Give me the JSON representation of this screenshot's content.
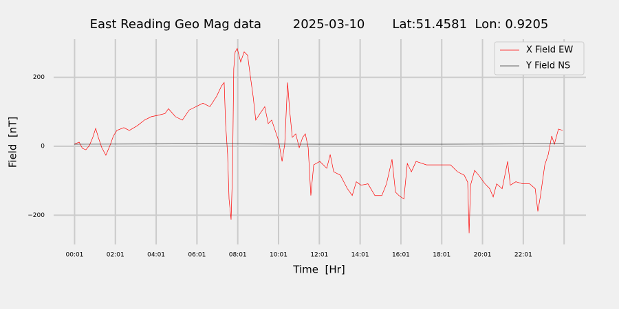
{
  "chart_data": {
    "type": "line",
    "title": "East Reading Geo Mag data        2025-03-10       Lat:51.4581  Lon: 0.9205",
    "x_label": "Time  [Hr]",
    "y_label": "Field  [nT]",
    "xlim": [
      -1.01,
      25.09
    ],
    "ylim": [
      -285,
      311
    ],
    "xticks": [
      {
        "value": 0.0167,
        "label": "00:01"
      },
      {
        "value": 2.0167,
        "label": "02:01"
      },
      {
        "value": 4.0167,
        "label": "04:01"
      },
      {
        "value": 6.0167,
        "label": "06:01"
      },
      {
        "value": 8.0167,
        "label": "08:01"
      },
      {
        "value": 10.0167,
        "label": "10:01"
      },
      {
        "value": 12.0167,
        "label": "12:01"
      },
      {
        "value": 14.0167,
        "label": "14:01"
      },
      {
        "value": 16.0167,
        "label": "16:01"
      },
      {
        "value": 18.0167,
        "label": "18:01"
      },
      {
        "value": 20.0167,
        "label": "20:01"
      },
      {
        "value": 22.0167,
        "label": "22:01"
      },
      {
        "value": 24.0167,
        "label": null
      }
    ],
    "yticks": [
      {
        "value": -200,
        "label": "−200"
      },
      0,
      200
    ],
    "grid": true,
    "legend": "upper right",
    "series": [
      {
        "name": "X Field EW",
        "color": "#ff0000",
        "x": [
          0.0,
          0.24,
          0.4,
          0.57,
          0.74,
          0.91,
          1.05,
          1.18,
          1.35,
          1.55,
          1.75,
          1.92,
          2.09,
          2.43,
          2.7,
          2.93,
          3.1,
          3.44,
          3.78,
          4.11,
          4.45,
          4.62,
          4.96,
          5.3,
          5.63,
          5.97,
          6.31,
          6.65,
          6.98,
          7.22,
          7.35,
          7.42,
          7.52,
          7.59,
          7.69,
          7.76,
          7.82,
          7.89,
          7.99,
          8.16,
          8.33,
          8.5,
          8.63,
          8.77,
          8.9,
          9.11,
          9.34,
          9.51,
          9.68,
          9.85,
          10.02,
          10.19,
          10.32,
          10.46,
          10.56,
          10.69,
          10.86,
          11.03,
          11.2,
          11.33,
          11.47,
          11.6,
          11.74,
          12.04,
          12.38,
          12.55,
          12.72,
          13.05,
          13.39,
          13.63,
          13.83,
          14.06,
          14.4,
          14.74,
          15.08,
          15.31,
          15.58,
          15.75,
          15.92,
          16.16,
          16.33,
          16.53,
          16.76,
          17.27,
          17.94,
          18.45,
          18.79,
          19.12,
          19.29,
          19.36,
          19.43,
          19.63,
          19.83,
          20.14,
          20.37,
          20.54,
          20.71,
          20.98,
          21.25,
          21.38,
          21.65,
          21.99,
          22.33,
          22.6,
          22.73,
          22.86,
          23.07,
          23.24,
          23.41,
          23.54,
          23.74,
          23.95
        ],
        "values": [
          6,
          12,
          -6,
          -10,
          2,
          26,
          52,
          26,
          -4,
          -26,
          2,
          30,
          46,
          54,
          46,
          54,
          60,
          76,
          86,
          90,
          95,
          109,
          86,
          76,
          105,
          115,
          125,
          115,
          145,
          175,
          185,
          66,
          -24,
          -153,
          -213,
          -74,
          225,
          274,
          284,
          245,
          274,
          264,
          205,
          145,
          76,
          95,
          115,
          66,
          76,
          46,
          16,
          -44,
          6,
          185,
          105,
          26,
          36,
          -4,
          26,
          36,
          -4,
          -143,
          -54,
          -44,
          -64,
          -24,
          -74,
          -84,
          -123,
          -143,
          -103,
          -113,
          -109,
          -143,
          -143,
          -109,
          -38,
          -133,
          -143,
          -153,
          -50,
          -74,
          -44,
          -54,
          -54,
          -54,
          -74,
          -84,
          -104,
          -252,
          -113,
          -70,
          -84,
          -109,
          -123,
          -147,
          -109,
          -123,
          -44,
          -113,
          -103,
          -109,
          -109,
          -123,
          -189,
          -143,
          -54,
          -24,
          30,
          6,
          50,
          46
        ]
      },
      {
        "name": "Y Field NS",
        "color": "#333333",
        "x": [
          0,
          6,
          12,
          18,
          24
        ],
        "values": [
          6,
          7,
          6,
          6,
          7
        ]
      }
    ]
  }
}
